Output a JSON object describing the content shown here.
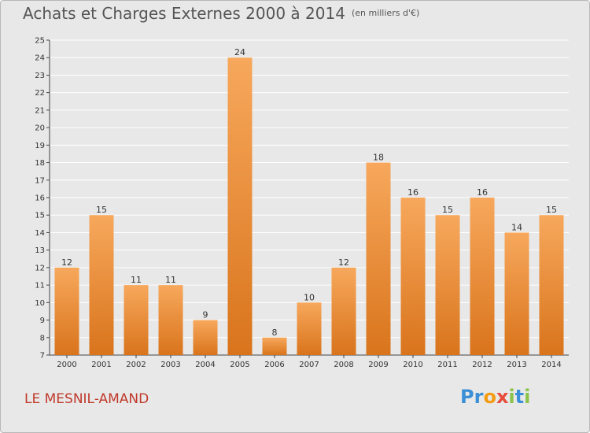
{
  "title": "Achats et Charges Externes 2000 à 2014",
  "subtitle": "(en milliers d'€)",
  "commune": "LE MESNIL-AMAND",
  "logo": {
    "text": "Proxiti",
    "letters": [
      {
        "ch": "P",
        "color": "#3a8fd6"
      },
      {
        "ch": "r",
        "color": "#3a8fd6"
      },
      {
        "ch": "o",
        "color": "#f39c12"
      },
      {
        "ch": "x",
        "color": "#e74c3c"
      },
      {
        "ch": "i",
        "color": "#8bc34a"
      },
      {
        "ch": "t",
        "color": "#3a8fd6"
      },
      {
        "ch": "i",
        "color": "#8bc34a"
      }
    ]
  },
  "colors": {
    "bar": "#f0913a",
    "bar_light": "#f7a85c",
    "bar_dark": "#d9741c",
    "background": "#e8e8e8",
    "grid": "#ffffff"
  },
  "chart_data": {
    "type": "bar",
    "categories": [
      "2000",
      "2001",
      "2002",
      "2003",
      "2004",
      "2005",
      "2006",
      "2007",
      "2008",
      "2009",
      "2010",
      "2011",
      "2012",
      "2013",
      "2014"
    ],
    "values": [
      12,
      15,
      11,
      11,
      9,
      24,
      8,
      10,
      12,
      18,
      16,
      15,
      16,
      14,
      15
    ],
    "ylim": [
      7,
      25
    ],
    "yticks": [
      7,
      8,
      9,
      10,
      11,
      12,
      13,
      14,
      15,
      16,
      17,
      18,
      19,
      20,
      21,
      22,
      23,
      24,
      25
    ],
    "grid": true
  }
}
